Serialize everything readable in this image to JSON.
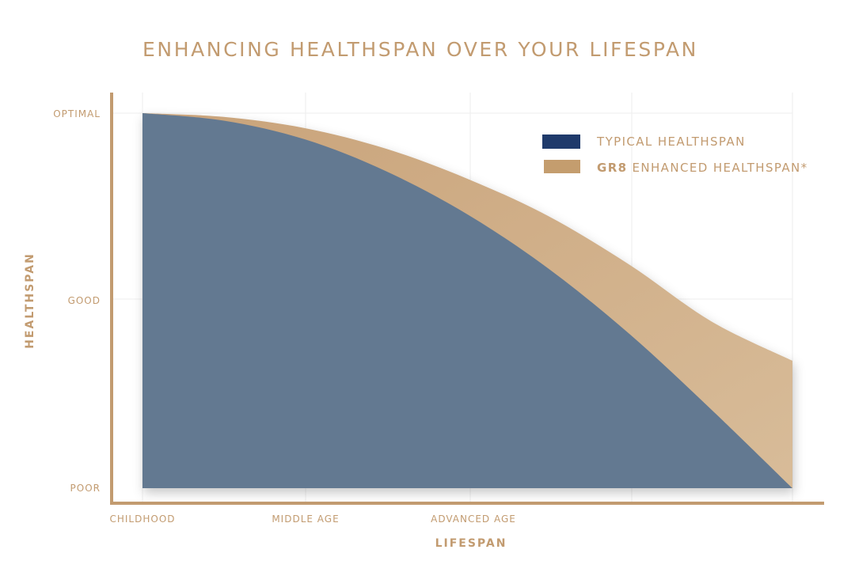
{
  "chart_data": {
    "type": "area",
    "title": "ENHANCING HEALTHSPAN OVER YOUR LIFESPAN",
    "xlabel": "LIFESPAN",
    "ylabel": "HEALTHSPAN",
    "x_ticks": [
      "CHILDHOOD",
      "MIDDLE AGE",
      "ADVANCED AGE"
    ],
    "y_ticks": [
      "POOR",
      "GOOD",
      "OPTIMAL"
    ],
    "xlim": [
      0,
      4
    ],
    "ylim": [
      0,
      2
    ],
    "grid": true,
    "legend_position": "top-right",
    "series": [
      {
        "name": "TYPICAL HEALTHSPAN",
        "legend_color": "#1f3a6b",
        "fill_color": "#647991",
        "x": [
          0,
          0.5,
          1,
          1.5,
          2,
          2.5,
          3,
          3.5,
          4
        ],
        "y": [
          2.0,
          1.96,
          1.86,
          1.69,
          1.46,
          1.17,
          0.82,
          0.42,
          0.0
        ]
      },
      {
        "name_prefix": "GR8",
        "name": "ENHANCED HEALTHSPAN*",
        "legend_color": "#c49d6e",
        "fill_color": "#cfb18c",
        "x": [
          0,
          0.5,
          1,
          1.5,
          2,
          2.5,
          3,
          3.5,
          4
        ],
        "y": [
          2.0,
          1.98,
          1.92,
          1.81,
          1.65,
          1.45,
          1.19,
          0.89,
          0.68
        ]
      }
    ]
  }
}
